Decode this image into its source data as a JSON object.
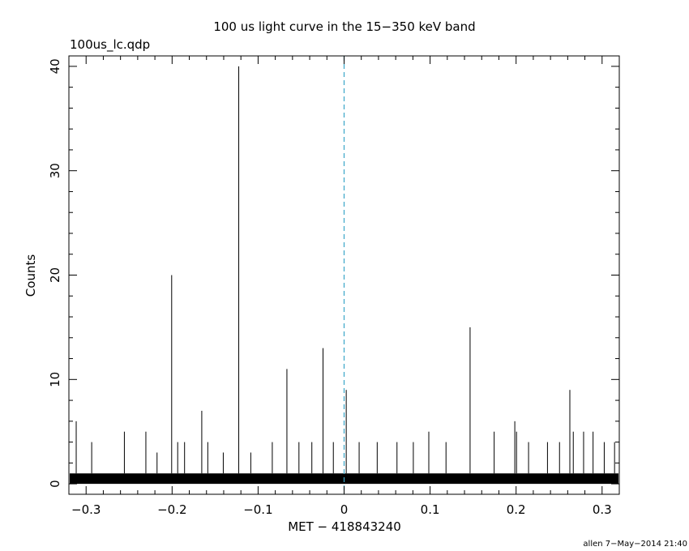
{
  "chart_data": {
    "type": "bar",
    "title": "100 us light curve in the 15−350 keV band",
    "file_label": "100us_lc.qdp",
    "xlabel": "MET − 418843240",
    "ylabel": "Counts",
    "footer": "allen  7−May−2014 21:40",
    "xlim": [
      -0.32,
      0.32
    ],
    "ylim": [
      -1,
      41
    ],
    "x_ticks": [
      {
        "v": -0.3,
        "label": "−0.3"
      },
      {
        "v": -0.2,
        "label": "−0.2"
      },
      {
        "v": -0.1,
        "label": "−0.1"
      },
      {
        "v": 0,
        "label": "0"
      },
      {
        "v": 0.1,
        "label": "0.1"
      },
      {
        "v": 0.2,
        "label": "0.2"
      },
      {
        "v": 0.3,
        "label": "0.3"
      }
    ],
    "y_ticks": [
      {
        "v": 0,
        "label": "0"
      },
      {
        "v": 10,
        "label": "10"
      },
      {
        "v": 20,
        "label": "20"
      },
      {
        "v": 30,
        "label": "30"
      },
      {
        "v": 40,
        "label": "40"
      }
    ],
    "trigger_time": 0,
    "baseline_level": 1,
    "peaks": [
      {
        "x": -0.3115,
        "y": 6
      },
      {
        "x": -0.2935,
        "y": 4
      },
      {
        "x": -0.2555,
        "y": 5
      },
      {
        "x": -0.2305,
        "y": 5
      },
      {
        "x": -0.2175,
        "y": 3
      },
      {
        "x": -0.2005,
        "y": 20
      },
      {
        "x": -0.1935,
        "y": 4
      },
      {
        "x": -0.1855,
        "y": 4
      },
      {
        "x": -0.1655,
        "y": 7
      },
      {
        "x": -0.1585,
        "y": 4
      },
      {
        "x": -0.1405,
        "y": 3
      },
      {
        "x": -0.1225,
        "y": 40
      },
      {
        "x": -0.1085,
        "y": 3
      },
      {
        "x": -0.0835,
        "y": 4
      },
      {
        "x": -0.0665,
        "y": 11
      },
      {
        "x": -0.0525,
        "y": 4
      },
      {
        "x": -0.0375,
        "y": 4
      },
      {
        "x": -0.0245,
        "y": 13
      },
      {
        "x": -0.0125,
        "y": 4
      },
      {
        "x": 0.0025,
        "y": 9
      },
      {
        "x": 0.0175,
        "y": 4
      },
      {
        "x": 0.0385,
        "y": 4
      },
      {
        "x": 0.0615,
        "y": 4
      },
      {
        "x": 0.0805,
        "y": 4
      },
      {
        "x": 0.0985,
        "y": 5
      },
      {
        "x": 0.1185,
        "y": 4
      },
      {
        "x": 0.1465,
        "y": 15
      },
      {
        "x": 0.1745,
        "y": 5
      },
      {
        "x": 0.1985,
        "y": 6
      },
      {
        "x": 0.2005,
        "y": 5
      },
      {
        "x": 0.2145,
        "y": 4
      },
      {
        "x": 0.2365,
        "y": 4
      },
      {
        "x": 0.2505,
        "y": 4
      },
      {
        "x": 0.2625,
        "y": 9
      },
      {
        "x": 0.2665,
        "y": 5
      },
      {
        "x": 0.2785,
        "y": 5
      },
      {
        "x": 0.2895,
        "y": 5
      },
      {
        "x": 0.3025,
        "y": 4
      },
      {
        "x": 0.3145,
        "y": 4
      }
    ]
  }
}
